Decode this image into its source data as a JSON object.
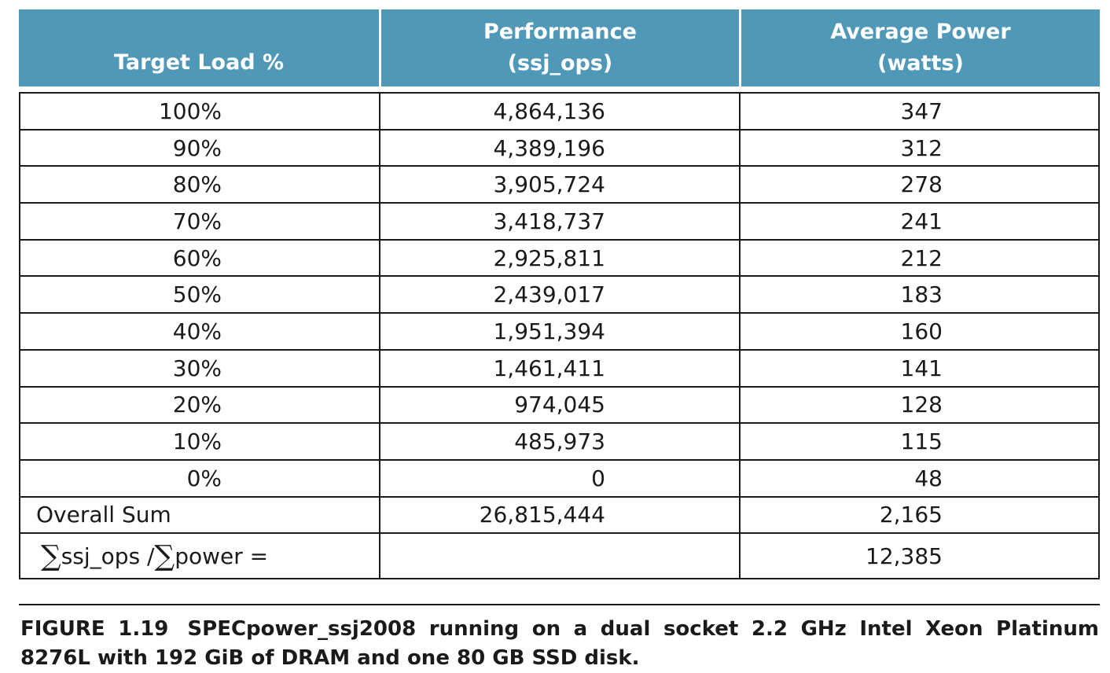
{
  "table": {
    "headers": [
      {
        "line1": "Target Load %",
        "line2": ""
      },
      {
        "line1": "Performance",
        "line2": "(ssj_ops)"
      },
      {
        "line1": "Average Power",
        "line2": "(watts)"
      }
    ],
    "rows": [
      {
        "load": "100%",
        "ops": "4,864,136",
        "power": "347"
      },
      {
        "load": "90%",
        "ops": "4,389,196",
        "power": "312"
      },
      {
        "load": "80%",
        "ops": "3,905,724",
        "power": "278"
      },
      {
        "load": "70%",
        "ops": "3,418,737",
        "power": "241"
      },
      {
        "load": "60%",
        "ops": "2,925,811",
        "power": "212"
      },
      {
        "load": "50%",
        "ops": "2,439,017",
        "power": "183"
      },
      {
        "load": "40%",
        "ops": "1,951,394",
        "power": "160"
      },
      {
        "load": "30%",
        "ops": "1,461,411",
        "power": "141"
      },
      {
        "load": "20%",
        "ops": "974,045",
        "power": "128"
      },
      {
        "load": "10%",
        "ops": "485,973",
        "power": "115"
      },
      {
        "load": "0%",
        "ops": "0",
        "power": "48"
      }
    ],
    "overall": {
      "label": "Overall Sum",
      "ops": "26,815,444",
      "power": "2,165"
    },
    "ratio": {
      "sigma": "∑",
      "part1": "ssj_ops / ",
      "part2": "power =",
      "ops": "",
      "power": "12,385"
    }
  },
  "caption": {
    "label": "FIGURE 1.19",
    "text": "SPECpower_ssj2008 running on a dual socket 2.2 GHz Intel Xeon Platinum 8276L with 192 GiB of DRAM and one 80 GB SSD disk."
  },
  "colors": {
    "header_bg": "#5098b8",
    "header_text": "#ffffff",
    "rule": "#1a1a1a"
  }
}
